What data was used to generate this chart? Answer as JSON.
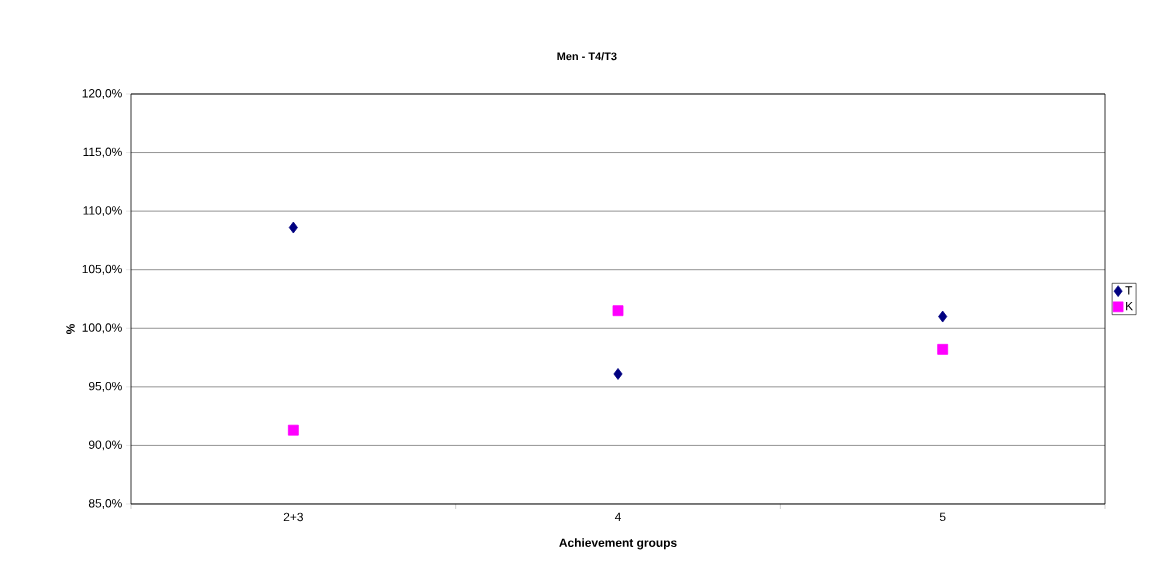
{
  "chart_data": {
    "type": "scatter",
    "title": "Men - T4/T3",
    "xlabel": "Achievement groups",
    "ylabel": "%",
    "categories": [
      "2+3",
      "4",
      "5"
    ],
    "series": [
      {
        "name": "T",
        "color": "#000080",
        "marker": "diamond",
        "values": [
          108.6,
          96.1,
          101.0
        ]
      },
      {
        "name": "K",
        "color": "#ff00ff",
        "marker": "square",
        "values": [
          91.3,
          101.5,
          98.2
        ]
      }
    ],
    "ylim": [
      85,
      120
    ],
    "yticks": [
      {
        "value": 85,
        "label": "85,0%"
      },
      {
        "value": 90,
        "label": "90,0%"
      },
      {
        "value": 95,
        "label": "95,0%"
      },
      {
        "value": 100,
        "label": "100,0%"
      },
      {
        "value": 105,
        "label": "105,0%"
      },
      {
        "value": 110,
        "label": "110,0%"
      },
      {
        "value": 115,
        "label": "115,0%"
      },
      {
        "value": 120,
        "label": "120,0%"
      }
    ],
    "grid": "y",
    "legend": "right"
  }
}
